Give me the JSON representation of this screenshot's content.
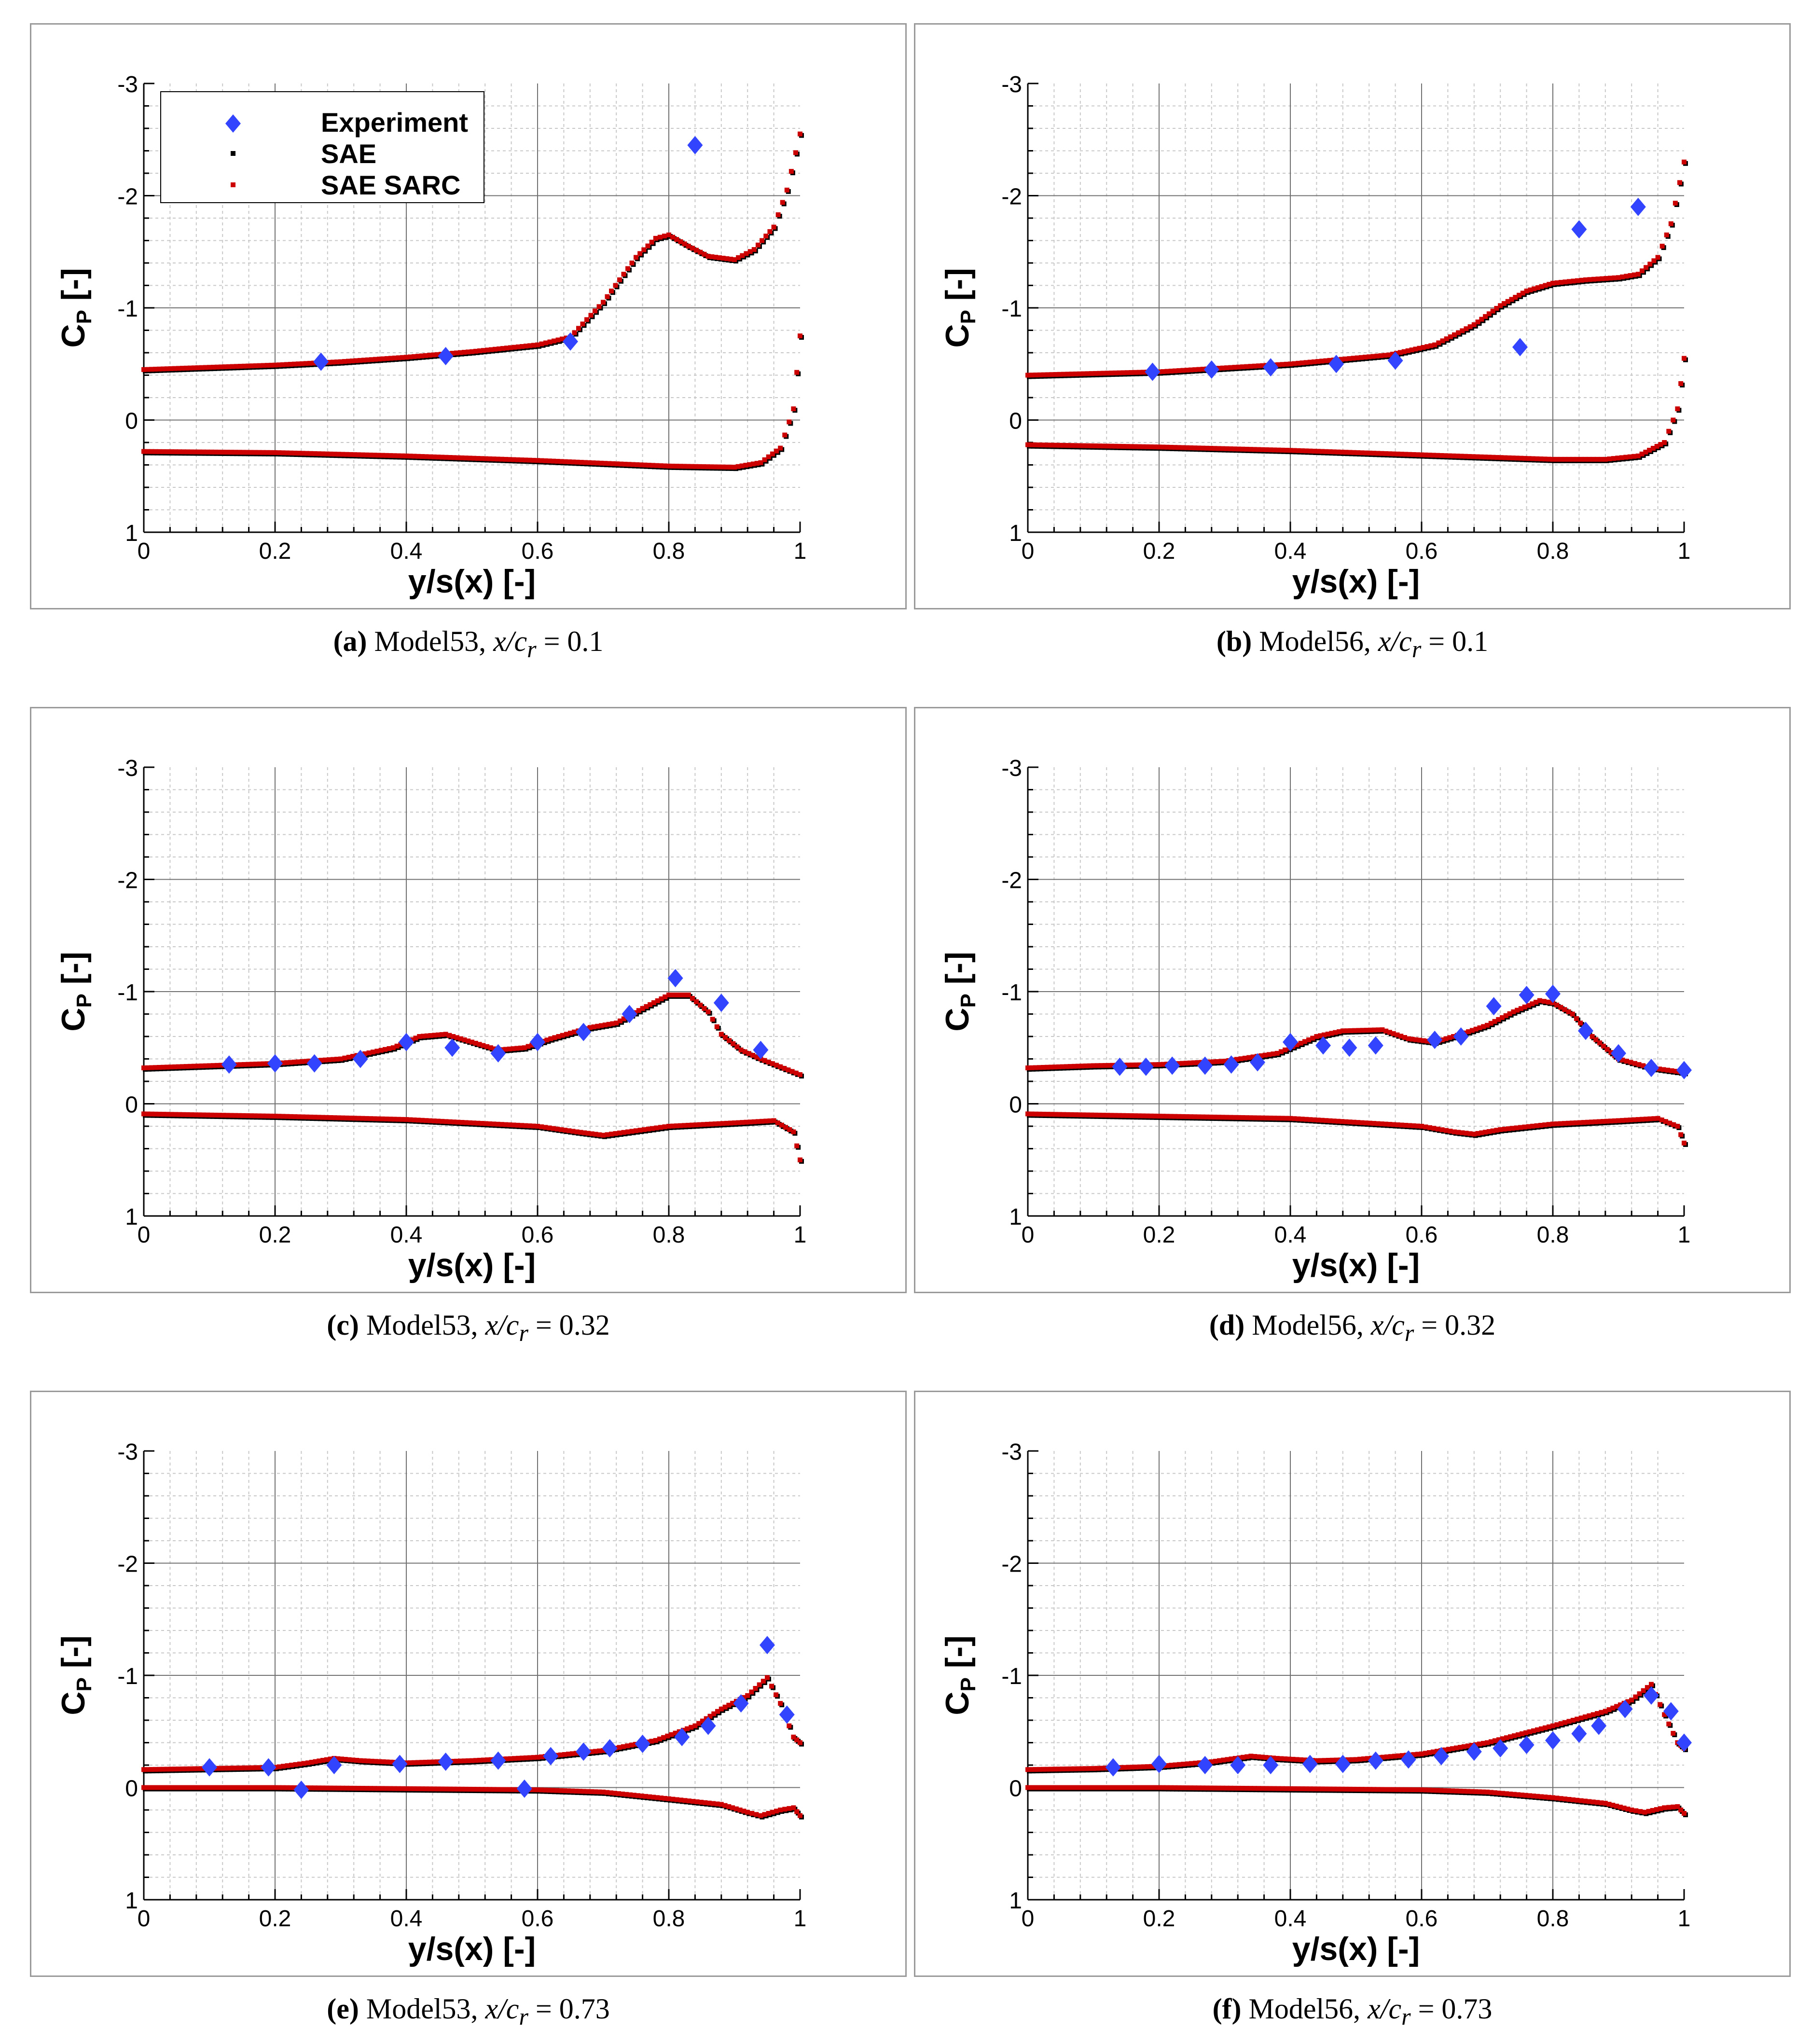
{
  "legend": {
    "experiment": "Experiment",
    "sae": "SAE",
    "sae_sarc": "SAE SARC"
  },
  "colors": {
    "experiment": "#3344ff",
    "sae": "#000000",
    "sae_sarc": "#cc0000"
  },
  "axes": {
    "xlabel": "y/s(x) [-]",
    "ylabel_main": "C",
    "ylabel_sub": "P",
    "ylabel_tail": " [-]",
    "xticks": [
      "0",
      "0.2",
      "0.4",
      "0.6",
      "0.8",
      "1"
    ],
    "yticks": [
      "-3",
      "-2",
      "-1",
      "0",
      "1"
    ],
    "xlim": [
      0,
      1
    ],
    "ylim": [
      -3,
      1
    ]
  },
  "chart_data": [
    {
      "type": "scatter",
      "label": "a",
      "caption": {
        "label": "(a)",
        "model": "Model53,",
        "param": "x/c",
        "sub": "r",
        "value": "= 0.1"
      },
      "has_legend": true,
      "experiment": [
        [
          0.27,
          -0.52
        ],
        [
          0.46,
          -0.57
        ],
        [
          0.65,
          -0.7
        ],
        [
          0.84,
          -2.45
        ]
      ],
      "upper": [
        [
          0,
          -0.45
        ],
        [
          0.1,
          -0.47
        ],
        [
          0.2,
          -0.49
        ],
        [
          0.3,
          -0.52
        ],
        [
          0.4,
          -0.56
        ],
        [
          0.5,
          -0.61
        ],
        [
          0.6,
          -0.67
        ],
        [
          0.65,
          -0.74
        ],
        [
          0.7,
          -1.05
        ],
        [
          0.75,
          -1.45
        ],
        [
          0.78,
          -1.62
        ],
        [
          0.8,
          -1.65
        ],
        [
          0.83,
          -1.55
        ],
        [
          0.86,
          -1.46
        ],
        [
          0.9,
          -1.43
        ],
        [
          0.93,
          -1.52
        ],
        [
          0.96,
          -1.72
        ],
        [
          0.98,
          -2.05
        ],
        [
          1.0,
          -2.55
        ]
      ],
      "lower": [
        [
          0,
          0.28
        ],
        [
          0.2,
          0.29
        ],
        [
          0.4,
          0.32
        ],
        [
          0.6,
          0.36
        ],
        [
          0.8,
          0.41
        ],
        [
          0.9,
          0.42
        ],
        [
          0.94,
          0.38
        ],
        [
          0.97,
          0.25
        ],
        [
          0.99,
          -0.1
        ],
        [
          1.0,
          -0.75
        ]
      ]
    },
    {
      "type": "scatter",
      "label": "b",
      "caption": {
        "label": "(b)",
        "model": "Model56,",
        "param": "x/c",
        "sub": "r",
        "value": "= 0.1"
      },
      "has_legend": false,
      "experiment": [
        [
          0.19,
          -0.43
        ],
        [
          0.28,
          -0.45
        ],
        [
          0.37,
          -0.47
        ],
        [
          0.47,
          -0.5
        ],
        [
          0.56,
          -0.53
        ],
        [
          0.75,
          -0.65
        ],
        [
          0.84,
          -1.7
        ],
        [
          0.93,
          -1.9
        ]
      ],
      "upper": [
        [
          0,
          -0.4
        ],
        [
          0.2,
          -0.43
        ],
        [
          0.4,
          -0.5
        ],
        [
          0.55,
          -0.58
        ],
        [
          0.62,
          -0.67
        ],
        [
          0.68,
          -0.85
        ],
        [
          0.72,
          -1.02
        ],
        [
          0.76,
          -1.15
        ],
        [
          0.8,
          -1.22
        ],
        [
          0.85,
          -1.25
        ],
        [
          0.9,
          -1.27
        ],
        [
          0.93,
          -1.3
        ],
        [
          0.96,
          -1.45
        ],
        [
          0.98,
          -1.75
        ],
        [
          1.0,
          -2.3
        ]
      ],
      "lower": [
        [
          0,
          0.22
        ],
        [
          0.2,
          0.24
        ],
        [
          0.4,
          0.27
        ],
        [
          0.6,
          0.31
        ],
        [
          0.8,
          0.35
        ],
        [
          0.88,
          0.35
        ],
        [
          0.93,
          0.32
        ],
        [
          0.97,
          0.2
        ],
        [
          0.99,
          -0.1
        ],
        [
          1.0,
          -0.55
        ]
      ]
    },
    {
      "type": "scatter",
      "label": "c",
      "caption": {
        "label": "(c)",
        "model": "Model53,",
        "param": "x/c",
        "sub": "r",
        "value": "= 0.32"
      },
      "has_legend": false,
      "experiment": [
        [
          0.13,
          -0.35
        ],
        [
          0.2,
          -0.36
        ],
        [
          0.26,
          -0.36
        ],
        [
          0.33,
          -0.4
        ],
        [
          0.4,
          -0.55
        ],
        [
          0.47,
          -0.5
        ],
        [
          0.54,
          -0.45
        ],
        [
          0.6,
          -0.55
        ],
        [
          0.67,
          -0.64
        ],
        [
          0.74,
          -0.8
        ],
        [
          0.81,
          -1.12
        ],
        [
          0.88,
          -0.9
        ],
        [
          0.94,
          -0.48
        ]
      ],
      "upper": [
        [
          0,
          -0.32
        ],
        [
          0.1,
          -0.34
        ],
        [
          0.2,
          -0.36
        ],
        [
          0.3,
          -0.4
        ],
        [
          0.38,
          -0.5
        ],
        [
          0.42,
          -0.6
        ],
        [
          0.46,
          -0.62
        ],
        [
          0.5,
          -0.55
        ],
        [
          0.54,
          -0.48
        ],
        [
          0.58,
          -0.5
        ],
        [
          0.62,
          -0.58
        ],
        [
          0.68,
          -0.68
        ],
        [
          0.72,
          -0.72
        ],
        [
          0.76,
          -0.85
        ],
        [
          0.8,
          -0.97
        ],
        [
          0.83,
          -0.97
        ],
        [
          0.86,
          -0.82
        ],
        [
          0.88,
          -0.62
        ],
        [
          0.91,
          -0.48
        ],
        [
          0.94,
          -0.4
        ],
        [
          0.97,
          -0.33
        ],
        [
          1.0,
          -0.26
        ]
      ],
      "lower": [
        [
          0,
          0.09
        ],
        [
          0.2,
          0.11
        ],
        [
          0.4,
          0.14
        ],
        [
          0.6,
          0.2
        ],
        [
          0.66,
          0.25
        ],
        [
          0.7,
          0.28
        ],
        [
          0.75,
          0.24
        ],
        [
          0.8,
          0.2
        ],
        [
          0.9,
          0.17
        ],
        [
          0.96,
          0.15
        ],
        [
          0.99,
          0.25
        ],
        [
          1.0,
          0.5
        ]
      ]
    },
    {
      "type": "scatter",
      "label": "d",
      "caption": {
        "label": "(d)",
        "model": "Model56,",
        "param": "x/c",
        "sub": "r",
        "value": "= 0.32"
      },
      "has_legend": false,
      "experiment": [
        [
          0.14,
          -0.33
        ],
        [
          0.18,
          -0.33
        ],
        [
          0.22,
          -0.34
        ],
        [
          0.27,
          -0.34
        ],
        [
          0.31,
          -0.35
        ],
        [
          0.35,
          -0.37
        ],
        [
          0.4,
          -0.55
        ],
        [
          0.45,
          -0.52
        ],
        [
          0.49,
          -0.5
        ],
        [
          0.53,
          -0.52
        ],
        [
          0.62,
          -0.57
        ],
        [
          0.66,
          -0.6
        ],
        [
          0.71,
          -0.87
        ],
        [
          0.76,
          -0.97
        ],
        [
          0.8,
          -0.98
        ],
        [
          0.85,
          -0.65
        ],
        [
          0.9,
          -0.45
        ],
        [
          0.95,
          -0.32
        ],
        [
          1.0,
          -0.3
        ]
      ],
      "upper": [
        [
          0,
          -0.32
        ],
        [
          0.1,
          -0.34
        ],
        [
          0.2,
          -0.35
        ],
        [
          0.3,
          -0.38
        ],
        [
          0.38,
          -0.45
        ],
        [
          0.44,
          -0.6
        ],
        [
          0.48,
          -0.65
        ],
        [
          0.54,
          -0.66
        ],
        [
          0.58,
          -0.58
        ],
        [
          0.62,
          -0.55
        ],
        [
          0.66,
          -0.62
        ],
        [
          0.7,
          -0.7
        ],
        [
          0.74,
          -0.82
        ],
        [
          0.78,
          -0.92
        ],
        [
          0.8,
          -0.9
        ],
        [
          0.83,
          -0.8
        ],
        [
          0.86,
          -0.6
        ],
        [
          0.9,
          -0.4
        ],
        [
          0.95,
          -0.32
        ],
        [
          1.0,
          -0.28
        ]
      ],
      "lower": [
        [
          0,
          0.09
        ],
        [
          0.2,
          0.11
        ],
        [
          0.4,
          0.13
        ],
        [
          0.6,
          0.2
        ],
        [
          0.65,
          0.25
        ],
        [
          0.68,
          0.27
        ],
        [
          0.72,
          0.23
        ],
        [
          0.8,
          0.18
        ],
        [
          0.9,
          0.15
        ],
        [
          0.96,
          0.13
        ],
        [
          0.99,
          0.2
        ],
        [
          1.0,
          0.35
        ]
      ]
    },
    {
      "type": "scatter",
      "label": "e",
      "caption": {
        "label": "(e)",
        "model": "Model53,",
        "param": "x/c",
        "sub": "r",
        "value": "= 0.73"
      },
      "has_legend": false,
      "experiment": [
        [
          0.1,
          -0.18
        ],
        [
          0.19,
          -0.18
        ],
        [
          0.24,
          0.02
        ],
        [
          0.29,
          -0.2
        ],
        [
          0.39,
          -0.21
        ],
        [
          0.46,
          -0.23
        ],
        [
          0.54,
          -0.24
        ],
        [
          0.58,
          0.01
        ],
        [
          0.62,
          -0.28
        ],
        [
          0.67,
          -0.32
        ],
        [
          0.71,
          -0.35
        ],
        [
          0.76,
          -0.39
        ],
        [
          0.82,
          -0.45
        ],
        [
          0.86,
          -0.55
        ],
        [
          0.91,
          -0.75
        ],
        [
          0.95,
          -1.27
        ],
        [
          0.98,
          -0.65
        ]
      ],
      "upper": [
        [
          0,
          -0.16
        ],
        [
          0.1,
          -0.17
        ],
        [
          0.2,
          -0.18
        ],
        [
          0.25,
          -0.22
        ],
        [
          0.29,
          -0.26
        ],
        [
          0.33,
          -0.24
        ],
        [
          0.4,
          -0.22
        ],
        [
          0.5,
          -0.24
        ],
        [
          0.6,
          -0.27
        ],
        [
          0.7,
          -0.33
        ],
        [
          0.78,
          -0.42
        ],
        [
          0.84,
          -0.55
        ],
        [
          0.88,
          -0.7
        ],
        [
          0.92,
          -0.82
        ],
        [
          0.95,
          -0.98
        ],
        [
          0.97,
          -0.75
        ],
        [
          0.99,
          -0.45
        ],
        [
          1.0,
          -0.4
        ]
      ],
      "lower": [
        [
          0,
          0
        ],
        [
          0.2,
          0
        ],
        [
          0.4,
          0.01
        ],
        [
          0.6,
          0.02
        ],
        [
          0.7,
          0.04
        ],
        [
          0.8,
          0.1
        ],
        [
          0.88,
          0.15
        ],
        [
          0.92,
          0.22
        ],
        [
          0.94,
          0.25
        ],
        [
          0.97,
          0.2
        ],
        [
          0.99,
          0.18
        ],
        [
          1.0,
          0.25
        ]
      ]
    },
    {
      "type": "scatter",
      "label": "f",
      "caption": {
        "label": "(f)",
        "model": "Model56,",
        "param": "x/c",
        "sub": "r",
        "value": "= 0.73"
      },
      "has_legend": false,
      "experiment": [
        [
          0.13,
          -0.18
        ],
        [
          0.2,
          -0.21
        ],
        [
          0.27,
          -0.2
        ],
        [
          0.32,
          -0.2
        ],
        [
          0.37,
          -0.2
        ],
        [
          0.43,
          -0.21
        ],
        [
          0.48,
          -0.21
        ],
        [
          0.53,
          -0.24
        ],
        [
          0.58,
          -0.25
        ],
        [
          0.63,
          -0.28
        ],
        [
          0.68,
          -0.32
        ],
        [
          0.72,
          -0.35
        ],
        [
          0.76,
          -0.38
        ],
        [
          0.8,
          -0.42
        ],
        [
          0.84,
          -0.48
        ],
        [
          0.87,
          -0.55
        ],
        [
          0.91,
          -0.7
        ],
        [
          0.95,
          -0.82
        ],
        [
          0.98,
          -0.68
        ],
        [
          1.0,
          -0.4
        ]
      ],
      "upper": [
        [
          0,
          -0.16
        ],
        [
          0.1,
          -0.17
        ],
        [
          0.2,
          -0.19
        ],
        [
          0.28,
          -0.23
        ],
        [
          0.34,
          -0.28
        ],
        [
          0.38,
          -0.26
        ],
        [
          0.44,
          -0.24
        ],
        [
          0.5,
          -0.25
        ],
        [
          0.6,
          -0.3
        ],
        [
          0.7,
          -0.4
        ],
        [
          0.8,
          -0.55
        ],
        [
          0.88,
          -0.68
        ],
        [
          0.92,
          -0.78
        ],
        [
          0.95,
          -0.92
        ],
        [
          0.97,
          -0.65
        ],
        [
          0.99,
          -0.4
        ],
        [
          1.0,
          -0.35
        ]
      ],
      "lower": [
        [
          0,
          0
        ],
        [
          0.2,
          0
        ],
        [
          0.4,
          0.01
        ],
        [
          0.6,
          0.02
        ],
        [
          0.7,
          0.04
        ],
        [
          0.8,
          0.09
        ],
        [
          0.88,
          0.14
        ],
        [
          0.92,
          0.2
        ],
        [
          0.94,
          0.22
        ],
        [
          0.97,
          0.18
        ],
        [
          0.99,
          0.17
        ],
        [
          1.0,
          0.23
        ]
      ]
    }
  ]
}
